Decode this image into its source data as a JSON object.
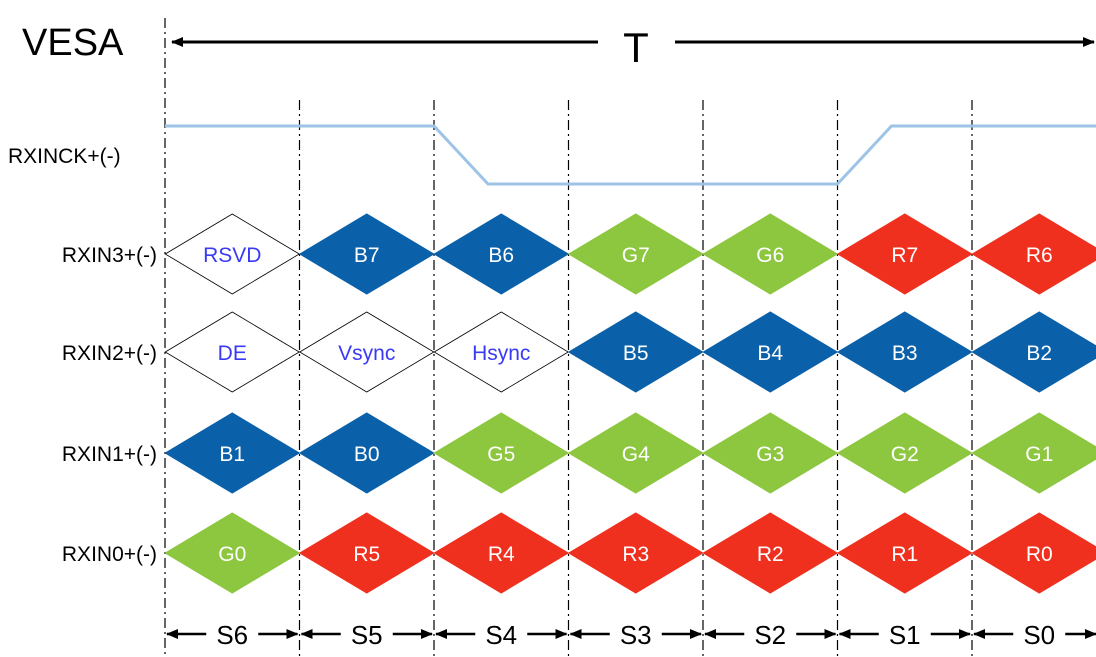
{
  "title": "VESA",
  "period_label": "T",
  "colors": {
    "blue": "#0b61a9",
    "green": "#8dc63f",
    "red": "#f0301e",
    "clock": "#9dc3e6",
    "control_text": "#3a3af5",
    "cell_text": "#ffffff"
  },
  "clock": {
    "label": "RXINCK+(-)",
    "levels": [
      1,
      1,
      0,
      0,
      0,
      1,
      1
    ]
  },
  "slots": [
    "S6",
    "S5",
    "S4",
    "S3",
    "S2",
    "S1",
    "S0"
  ],
  "lanes": [
    {
      "label": "RXIN3+(-)",
      "cells": [
        {
          "text": "RSVD",
          "color": "none"
        },
        {
          "text": "B7",
          "color": "blue"
        },
        {
          "text": "B6",
          "color": "blue"
        },
        {
          "text": "G7",
          "color": "green"
        },
        {
          "text": "G6",
          "color": "green"
        },
        {
          "text": "R7",
          "color": "red"
        },
        {
          "text": "R6",
          "color": "red"
        }
      ]
    },
    {
      "label": "RXIN2+(-)",
      "cells": [
        {
          "text": "DE",
          "color": "none"
        },
        {
          "text": "Vsync",
          "color": "none"
        },
        {
          "text": "Hsync",
          "color": "none"
        },
        {
          "text": "B5",
          "color": "blue"
        },
        {
          "text": "B4",
          "color": "blue"
        },
        {
          "text": "B3",
          "color": "blue"
        },
        {
          "text": "B2",
          "color": "blue"
        }
      ]
    },
    {
      "label": "RXIN1+(-)",
      "cells": [
        {
          "text": "B1",
          "color": "blue"
        },
        {
          "text": "B0",
          "color": "blue"
        },
        {
          "text": "G5",
          "color": "green"
        },
        {
          "text": "G4",
          "color": "green"
        },
        {
          "text": "G3",
          "color": "green"
        },
        {
          "text": "G2",
          "color": "green"
        },
        {
          "text": "G1",
          "color": "green"
        }
      ]
    },
    {
      "label": "RXIN0+(-)",
      "cells": [
        {
          "text": "G0",
          "color": "green"
        },
        {
          "text": "R5",
          "color": "red"
        },
        {
          "text": "R4",
          "color": "red"
        },
        {
          "text": "R3",
          "color": "red"
        },
        {
          "text": "R2",
          "color": "red"
        },
        {
          "text": "R1",
          "color": "red"
        },
        {
          "text": "R0",
          "color": "red"
        }
      ]
    }
  ]
}
